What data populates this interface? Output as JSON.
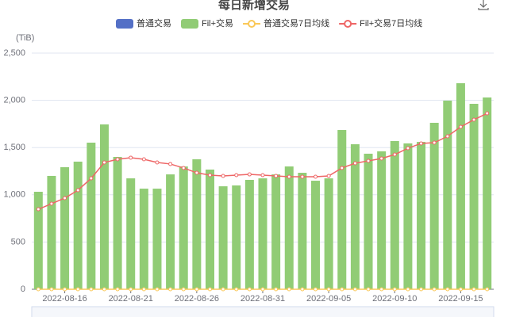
{
  "chart_data": {
    "type": "bar",
    "title": "每日新增交易",
    "y_label": "(TiB)",
    "categories": [
      null,
      null,
      "2022-08-16",
      null,
      null,
      null,
      null,
      "2022-08-21",
      null,
      null,
      null,
      null,
      "2022-08-26",
      null,
      null,
      null,
      null,
      "2022-08-31",
      null,
      null,
      null,
      null,
      "2022-09-05",
      null,
      null,
      null,
      null,
      "2022-09-10",
      null,
      null,
      null,
      null,
      "2022-09-15",
      null,
      null
    ],
    "series": [
      {
        "name": "普通交易",
        "kind": "bar",
        "color": "#5470c6",
        "values": [
          0,
          0,
          0,
          0,
          0,
          0,
          0,
          0,
          0,
          0,
          0,
          0,
          0,
          0,
          0,
          0,
          0,
          0,
          0,
          0,
          0,
          0,
          0,
          0,
          0,
          0,
          0,
          0,
          0,
          0,
          0,
          0,
          0,
          0,
          0
        ]
      },
      {
        "name": "Fil+交易",
        "kind": "bar",
        "color": "#91cc75",
        "values": [
          1032,
          1200,
          1292,
          1351,
          1552,
          1745,
          1401,
          1174,
          1065,
          1065,
          1216,
          1300,
          1376,
          1267,
          1090,
          1099,
          1158,
          1174,
          1216,
          1300,
          1233,
          1149,
          1174,
          1686,
          1535,
          1435,
          1460,
          1569,
          1544,
          1560,
          1762,
          1997,
          2181,
          1963,
          2030
        ]
      },
      {
        "name": "普通交易7日均线",
        "kind": "line",
        "color": "#fac858",
        "values": [
          0,
          0,
          0,
          0,
          0,
          0,
          0,
          0,
          0,
          0,
          0,
          0,
          0,
          0,
          0,
          0,
          0,
          0,
          0,
          0,
          0,
          0,
          0,
          0,
          0,
          0,
          0,
          0,
          0,
          0,
          0,
          0,
          0,
          0,
          0
        ]
      },
      {
        "name": "Fil+交易7日均线",
        "kind": "line",
        "color": "#ee6666",
        "values": [
          847,
          906,
          965,
          1049,
          1174,
          1342,
          1376,
          1393,
          1376,
          1342,
          1326,
          1284,
          1233,
          1208,
          1200,
          1208,
          1216,
          1208,
          1200,
          1191,
          1191,
          1191,
          1200,
          1284,
          1334,
          1359,
          1384,
          1426,
          1493,
          1544,
          1552,
          1619,
          1720,
          1795,
          1862
        ]
      }
    ],
    "ylim": [
      0,
      2500
    ],
    "yticks": [
      0,
      500,
      {
        "value": 1000,
        "label": "1,000"
      },
      {
        "value": 1500,
        "label": "1,500"
      },
      {
        "value": 2000,
        "label": "2,000"
      },
      {
        "value": 2500,
        "label": "2,500"
      }
    ],
    "grid": true
  }
}
